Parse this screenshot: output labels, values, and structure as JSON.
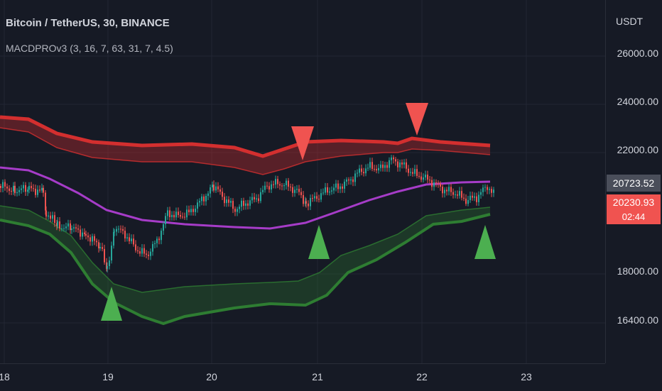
{
  "header": {
    "symbol_title": "Bitcoin / TetherUS, 30, BINANCE",
    "indicator": "MACDPROv3 (3, 16, 7, 63, 31, 7, 4.5)"
  },
  "price_axis": {
    "currency": "USDT",
    "ticks": [
      "26000.00",
      "24000.00",
      "22000.00",
      "18000.00",
      "16400.00"
    ],
    "tags": [
      {
        "label": "20723.52",
        "color": "#4a4e5a"
      },
      {
        "label": "20230.93",
        "color": "#f05350"
      },
      {
        "label": "02:44",
        "color": "#f05350"
      }
    ]
  },
  "time_axis": {
    "labels": [
      "18",
      "19",
      "20",
      "21",
      "22",
      "23"
    ]
  },
  "colors": {
    "background": "#161a25",
    "upper_band": "#d32f2f",
    "middle_line": "#a63cc8",
    "lower_band": "#2e7d32",
    "buy_signal": "#4caf50",
    "sell_signal": "#f05350",
    "candle_up": "#26a69a",
    "candle_down": "#ef5350"
  },
  "signals": {
    "sell_icons": [
      "sell-signal-icon",
      "sell-signal-icon"
    ],
    "buy_icons": [
      "buy-signal-icon",
      "buy-signal-icon",
      "buy-signal-icon"
    ]
  }
}
